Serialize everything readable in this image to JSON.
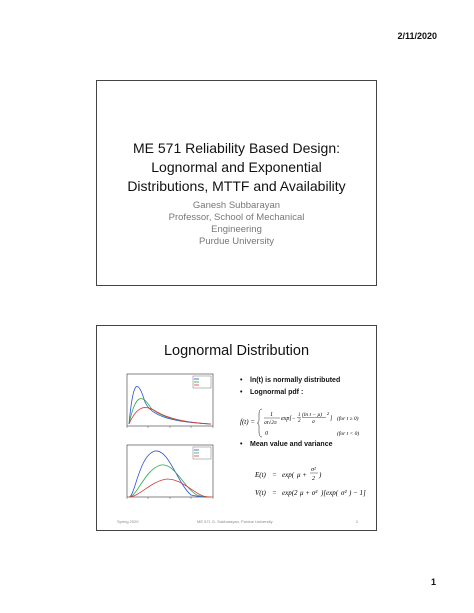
{
  "header": {
    "date": "2/11/2020"
  },
  "page_number": "1",
  "slide1": {
    "title_lines": [
      "ME 571 Reliability Based Design:",
      "Lognormal and Exponential",
      "Distributions, MTTF and Availability"
    ],
    "author": "Ganesh Subbarayan",
    "position_lines": [
      "Professor, School of Mechanical",
      "Engineering"
    ],
    "affiliation": "Purdue University"
  },
  "slide2": {
    "title": "Lognormal Distribution",
    "bullets": [
      "ln(t) is normally distributed",
      "Lognormal pdf :",
      "Mean value and variance"
    ],
    "formula_pdf": "f(t) = { 1/(σt√(2π)) exp[−½((ln t − μ)/σ)²] (for t ≥ 0); 0 (for t < 0) }",
    "formula_mean": "E(t) = exp(μ + σ²/2)",
    "formula_var": "V(t) = exp(2μ + σ²)[exp(σ²) − 1]",
    "footer": {
      "left": "Spring 2020",
      "center": "ME 571 G. Subbarayan, Purdue University",
      "right": "2"
    },
    "series_colors": [
      "#2a4fd8",
      "#2da84a",
      "#d43a3a"
    ]
  }
}
